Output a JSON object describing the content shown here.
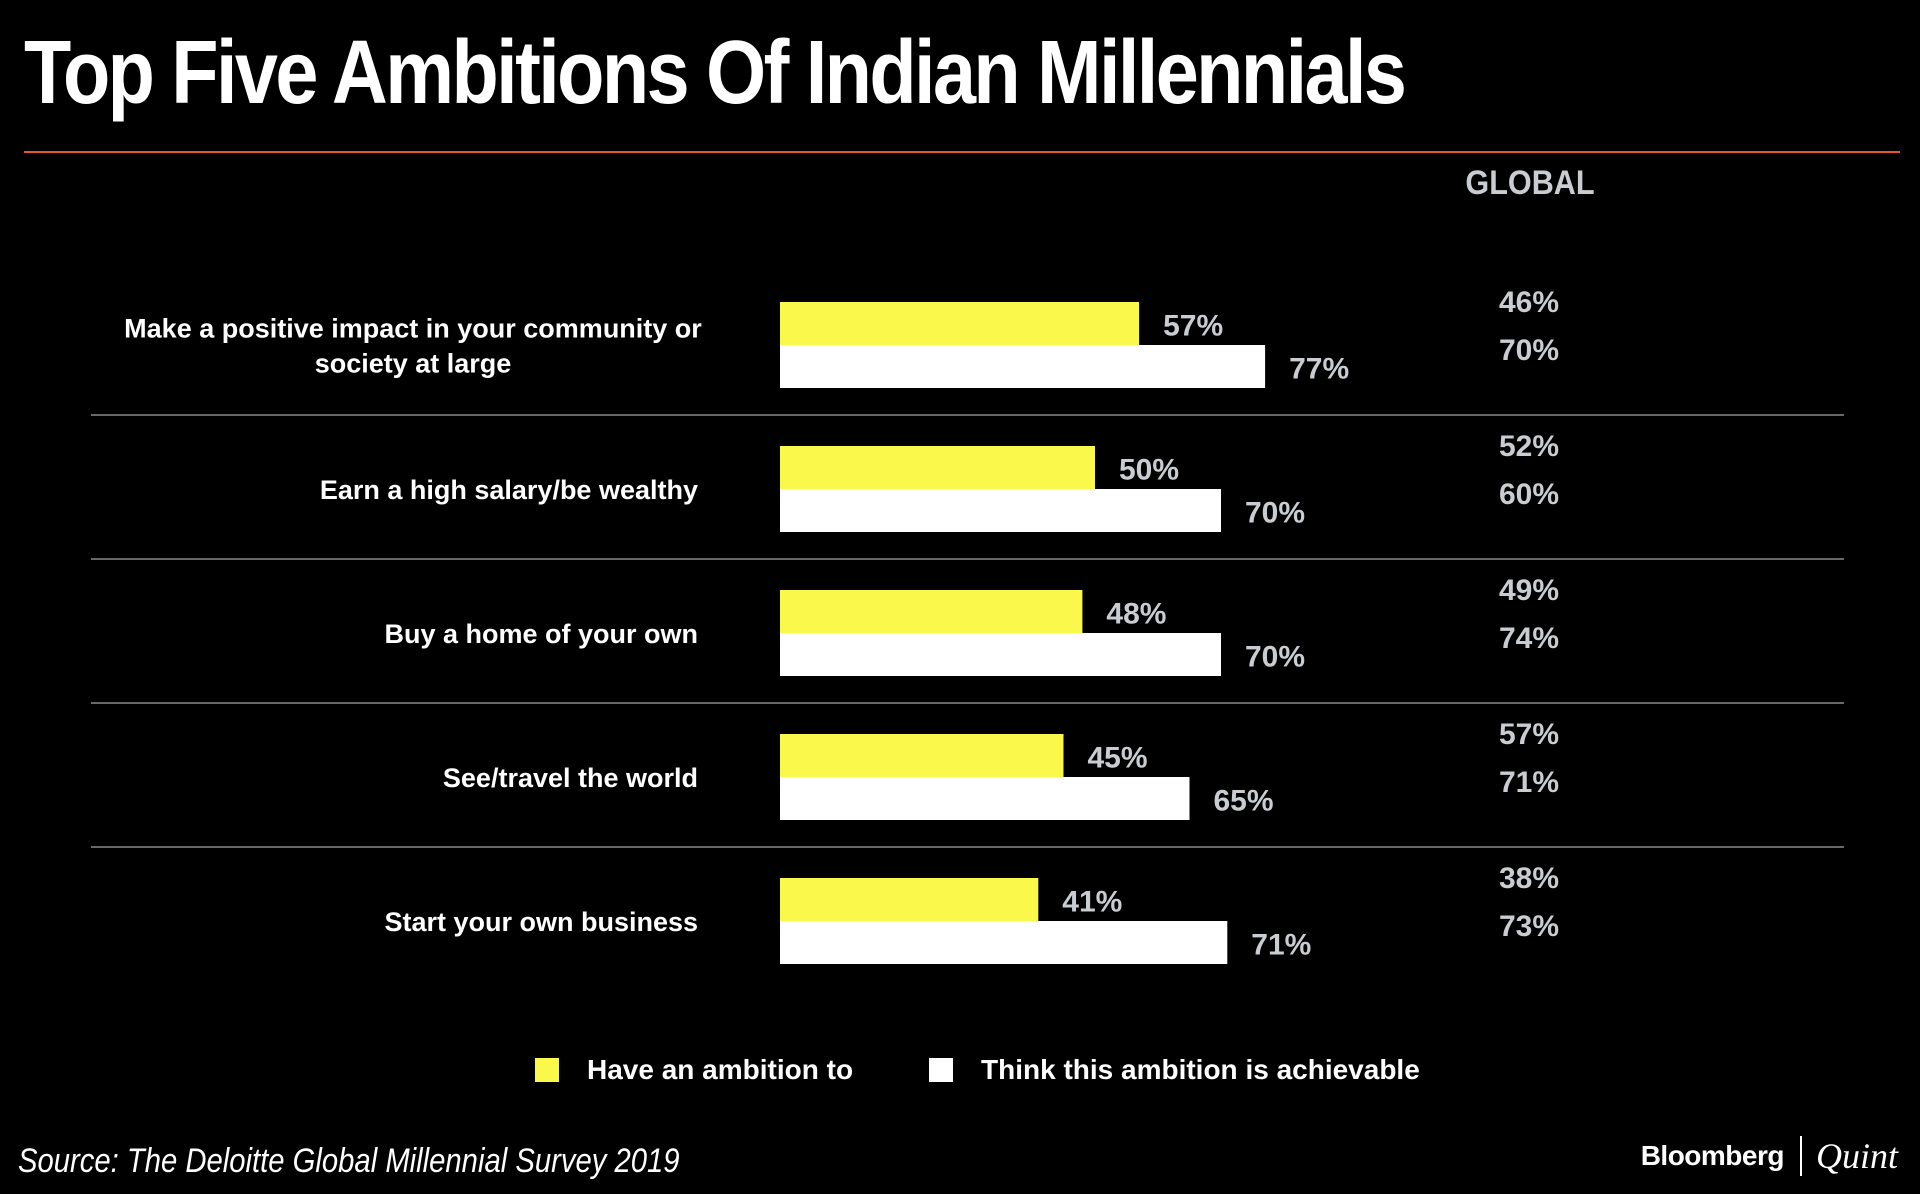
{
  "title": "Top Five Ambitions Of Indian Millennials",
  "global_header": "GLOBAL",
  "source": "Source: The Deloitte Global Millennial Survey 2019",
  "brand": {
    "primary": "Bloomberg",
    "secondary": "Quint"
  },
  "colors": {
    "ambition": "#faf84a",
    "achievable": "#ffffff",
    "accent_rule": "#e8572a",
    "muted_text": "#c9ccd1",
    "divider": "#8a8a8a"
  },
  "chart_data": {
    "type": "bar",
    "orientation": "horizontal",
    "categories": [
      [
        "Make a positive impact in your community or",
        "society at large"
      ],
      [
        "Earn a high salary/be wealthy"
      ],
      [
        "Buy a home of your own"
      ],
      [
        "See/travel the world"
      ],
      [
        "Start your own business"
      ]
    ],
    "series": [
      {
        "name": "Have an ambition to",
        "values": [
          57,
          50,
          48,
          45,
          41
        ]
      },
      {
        "name": "Think this ambition is achievable",
        "values": [
          77,
          70,
          70,
          65,
          71
        ]
      }
    ],
    "global": {
      "ambition": [
        46,
        52,
        49,
        57,
        38
      ],
      "achievable": [
        70,
        60,
        74,
        71,
        73
      ]
    },
    "unit": "%",
    "xlim": [
      0,
      100
    ],
    "legend_position": "bottom"
  }
}
